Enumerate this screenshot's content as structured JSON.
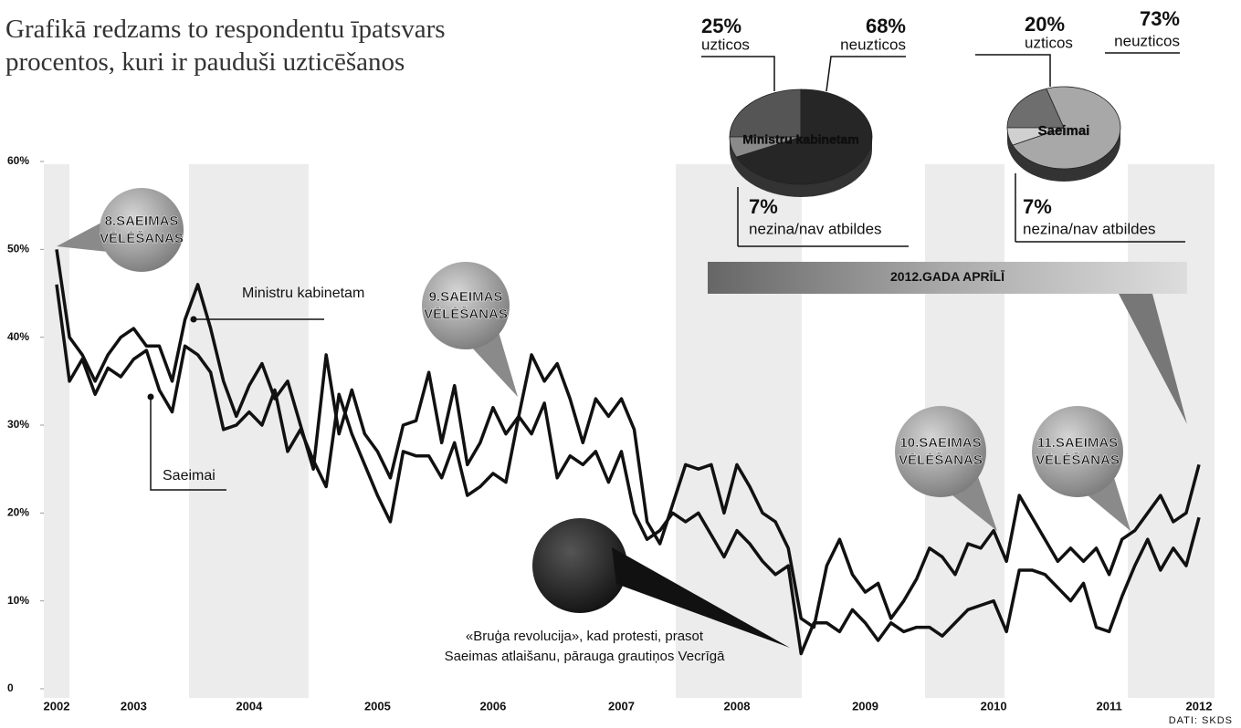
{
  "chart_data": [
    {
      "type": "line",
      "title": "Grafikā redzams to respondentu īpatsvars procentos, kuri ir pauduši uzticēšanos",
      "categories": [
        "2002",
        null,
        null,
        null,
        null,
        null,
        "2003",
        null,
        null,
        null,
        null,
        null,
        null,
        null,
        null,
        "2004",
        null,
        null,
        null,
        null,
        null,
        null,
        null,
        null,
        null,
        "2005",
        null,
        null,
        null,
        null,
        null,
        null,
        null,
        null,
        "2006",
        null,
        null,
        null,
        null,
        null,
        null,
        null,
        null,
        null,
        "2007",
        null,
        null,
        null,
        null,
        null,
        null,
        null,
        null,
        "2008",
        null,
        null,
        null,
        null,
        null,
        null,
        null,
        null,
        null,
        "2009",
        null,
        null,
        null,
        null,
        null,
        null,
        null,
        null,
        null,
        "2010",
        null,
        null,
        null,
        null,
        null,
        null,
        null,
        null,
        "2011",
        null,
        null,
        null,
        null,
        null,
        null,
        "2012"
      ],
      "series": [
        {
          "name": "Ministru kabinetam",
          "color": "#111111",
          "values": [
            50,
            40,
            38,
            35,
            38,
            40,
            41,
            39,
            39,
            35,
            42,
            46,
            41,
            35,
            31,
            34.5,
            37,
            33,
            35,
            30,
            25,
            38,
            29,
            34,
            29,
            27,
            24,
            30,
            30.5,
            36,
            28,
            34.5,
            25.5,
            28,
            32,
            29,
            31,
            38,
            35,
            37,
            33,
            28,
            33,
            31,
            33,
            29.5,
            19,
            16.5,
            21,
            25.5,
            25,
            25.5,
            20,
            25.5,
            23,
            20,
            19,
            16,
            8,
            7,
            14,
            17,
            13,
            11,
            12,
            8,
            10,
            12.5,
            16,
            15,
            13,
            16.5,
            16,
            18,
            14.5,
            22,
            19.5,
            17,
            14.5,
            16,
            14.5,
            16,
            13,
            17,
            18,
            20,
            22,
            19,
            20,
            25.5
          ]
        },
        {
          "name": "Saeimai",
          "color": "#111111",
          "values": [
            46,
            35,
            37.5,
            33.5,
            36.5,
            35.5,
            37.5,
            38.5,
            34,
            31.5,
            39,
            38,
            36,
            29.5,
            30,
            31.5,
            30,
            34,
            27,
            29.5,
            26,
            23,
            33.5,
            29,
            25.5,
            22,
            19,
            27,
            26.5,
            26.5,
            24,
            28,
            22,
            23,
            24.5,
            23.5,
            31,
            29,
            32.5,
            24,
            26.5,
            25.5,
            27,
            23.5,
            27,
            20,
            17,
            18,
            20,
            19,
            20,
            17.5,
            15,
            18,
            16.5,
            14.5,
            13,
            14,
            4,
            7.5,
            7.5,
            6.5,
            9,
            7.5,
            5.5,
            7.5,
            6.5,
            7,
            7,
            6,
            7.5,
            9,
            9.5,
            10,
            6.5,
            13.5,
            13.5,
            13,
            11.5,
            10,
            12,
            7,
            6.5,
            10.5,
            14,
            17,
            13.5,
            16,
            14,
            19.5
          ]
        }
      ],
      "ylim": [
        0,
        60
      ],
      "yticks": [
        0,
        {
          "value": 10,
          "label": "10%"
        },
        {
          "value": 20,
          "label": "20%"
        },
        {
          "value": 30,
          "label": "30%"
        },
        {
          "value": 40,
          "label": "40%"
        },
        {
          "value": 50,
          "label": "50%"
        },
        {
          "value": 60,
          "label": "60%"
        }
      ],
      "grid": false,
      "annotations": [
        {
          "lines": [
            "8.SAEIMAS",
            "VĒLĒŠANAS"
          ]
        },
        {
          "lines": [
            "9.SAEIMAS",
            "VĒLĒŠANAS"
          ]
        },
        {
          "lines": [
            "10.SAEIMAS",
            "VĒLĒŠANAS"
          ]
        },
        {
          "lines": [
            "11.SAEIMAS",
            "VĒLĒŠANAS"
          ]
        },
        {
          "lines": [
            "2012.GADA APRĪLĪ"
          ]
        },
        {
          "lines": [
            "«Bruģa revolucija», kad protesti, prasot",
            "Saeimas atlaišanu, pārauga grautiņos Vecrīgā"
          ]
        }
      ],
      "source": "DATI: SKDS"
    },
    {
      "type": "pie",
      "title": "Ministru kabinetam",
      "categories": [
        "uzticos",
        "neuzticos",
        "nezina/nav atbildes"
      ],
      "values": [
        25,
        68,
        7
      ],
      "value_labels": [
        "25%",
        "68%",
        "7%"
      ],
      "colors": [
        "#555555",
        "#262626",
        "#8a8a8a"
      ]
    },
    {
      "type": "pie",
      "title": "Saeimai",
      "categories": [
        "uzticos",
        "neuzticos",
        "nezina/nav atbildes"
      ],
      "values": [
        20,
        73,
        7
      ],
      "value_labels": [
        "20%",
        "73%",
        "7%"
      ],
      "colors": [
        "#6e6e6e",
        "#a8a8a8",
        "#d0d0d0"
      ]
    }
  ]
}
